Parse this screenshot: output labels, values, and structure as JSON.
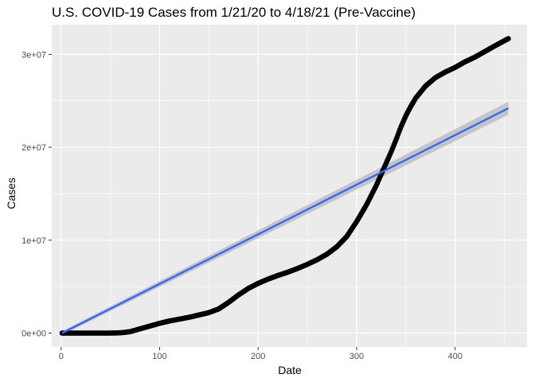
{
  "chart_data": {
    "type": "scatter",
    "title": "U.S. COVID-19 Cases from 1/21/20 to 4/18/21 (Pre-Vaccine)",
    "xlabel": "Date",
    "ylabel": "Cases",
    "xlim": [
      -9.5,
      473
    ],
    "ylim": [
      -1500000,
      33200000
    ],
    "x_ticks": [
      0,
      100,
      200,
      300,
      400
    ],
    "x_tick_labels": [
      "0",
      "100",
      "200",
      "300",
      "400"
    ],
    "x_minor_ticks": [
      50,
      150,
      250,
      350,
      450
    ],
    "y_ticks": [
      0,
      10000000,
      20000000,
      30000000
    ],
    "y_tick_labels": [
      "0e+00",
      "1e+07",
      "2e+07",
      "3e+07"
    ],
    "y_minor_ticks": [
      5000000,
      15000000,
      25000000
    ],
    "grid": true,
    "series": [
      {
        "kind": "points",
        "color": "#000000",
        "x": [
          1,
          10,
          20,
          30,
          40,
          50,
          55,
          60,
          65,
          70,
          75,
          80,
          90,
          100,
          110,
          120,
          130,
          140,
          150,
          160,
          170,
          180,
          190,
          200,
          210,
          220,
          230,
          240,
          250,
          260,
          270,
          280,
          290,
          300,
          310,
          320,
          330,
          335,
          340,
          345,
          350,
          355,
          360,
          370,
          380,
          390,
          400,
          410,
          420,
          430,
          440,
          454
        ],
        "y": [
          0,
          0,
          0,
          0,
          0,
          0,
          5000,
          30000,
          80000,
          150000,
          300000,
          450000,
          750000,
          1050000,
          1300000,
          1500000,
          1700000,
          1950000,
          2200000,
          2600000,
          3300000,
          4100000,
          4800000,
          5350000,
          5800000,
          6200000,
          6550000,
          6950000,
          7400000,
          7900000,
          8500000,
          9300000,
          10400000,
          12000000,
          13800000,
          15900000,
          18300000,
          19500000,
          20800000,
          22200000,
          23400000,
          24400000,
          25300000,
          26600000,
          27500000,
          28100000,
          28600000,
          29200000,
          29700000,
          30300000,
          30900000,
          31700000
        ]
      },
      {
        "kind": "linear-fit",
        "color": "#3366ff",
        "band_color": "#bdbdbd",
        "x": [
          1,
          454
        ],
        "y": [
          0,
          24200000
        ],
        "ci_upper": [
          200000,
          24900000
        ],
        "ci_lower": [
          -200000,
          23500000
        ]
      }
    ]
  }
}
